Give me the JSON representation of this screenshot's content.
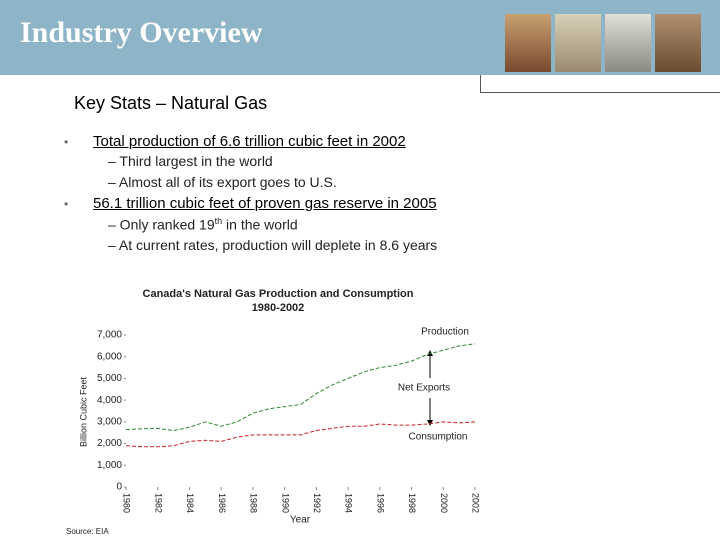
{
  "header": {
    "title": "Industry Overview"
  },
  "subtitle": "Key Stats – Natural Gas",
  "bullets": [
    {
      "text": "Total production of 6.6 trillion cubic feet in 2002",
      "subs": [
        {
          "parts": [
            "– Third largest in the world"
          ]
        },
        {
          "parts": [
            "– Almost all of its export goes to U.S."
          ]
        }
      ]
    },
    {
      "text": "56.1 trillion cubic feet of proven gas reserve in 2005",
      "subs": [
        {
          "parts": [
            "– Only ranked 19",
            "th",
            " in the world"
          ]
        },
        {
          "parts": [
            "– At current rates, production will deplete in 8.6 years"
          ]
        }
      ]
    }
  ],
  "chart_data": {
    "type": "line",
    "title": "Canada's Natural Gas Production and Consumption",
    "subtitle": "1980-2002",
    "x_label": "Year",
    "y_label": "Billion Cubic Feet",
    "source": "Source: EIA",
    "x": [
      1980,
      1981,
      1982,
      1983,
      1984,
      1985,
      1986,
      1987,
      1988,
      1989,
      1990,
      1991,
      1992,
      1993,
      1994,
      1995,
      1996,
      1997,
      1998,
      1999,
      2000,
      2001,
      2002
    ],
    "series": [
      {
        "name": "Production",
        "color": "#2e8b2e",
        "values": [
          2650,
          2680,
          2700,
          2600,
          2750,
          3000,
          2800,
          3000,
          3400,
          3600,
          3700,
          3800,
          4300,
          4700,
          5000,
          5300,
          5500,
          5600,
          5800,
          6100,
          6300,
          6500,
          6600
        ]
      },
      {
        "name": "Consumption",
        "color": "#cc2222",
        "values": [
          1900,
          1850,
          1850,
          1900,
          2100,
          2150,
          2100,
          2300,
          2400,
          2400,
          2400,
          2400,
          2600,
          2700,
          2800,
          2800,
          2900,
          2850,
          2850,
          2900,
          3000,
          2950,
          3000
        ]
      }
    ],
    "annotations": [
      "Production",
      "Net Exports",
      "Consumption"
    ],
    "xlim": [
      1980,
      2002
    ],
    "xticks": [
      1980,
      1982,
      1984,
      1986,
      1988,
      1990,
      1992,
      1994,
      1996,
      1998,
      2000,
      2002
    ],
    "ylim": [
      0,
      7000
    ],
    "yticks": [
      0,
      {
        "value": 1000,
        "label": "1,000"
      },
      {
        "value": 2000,
        "label": "2,000"
      },
      {
        "value": 3000,
        "label": "3,000"
      },
      {
        "value": 4000,
        "label": "4,000"
      },
      {
        "value": 5000,
        "label": "5,000"
      },
      {
        "value": 6000,
        "label": "6,000"
      },
      {
        "value": 7000,
        "label": "7,000"
      }
    ]
  }
}
